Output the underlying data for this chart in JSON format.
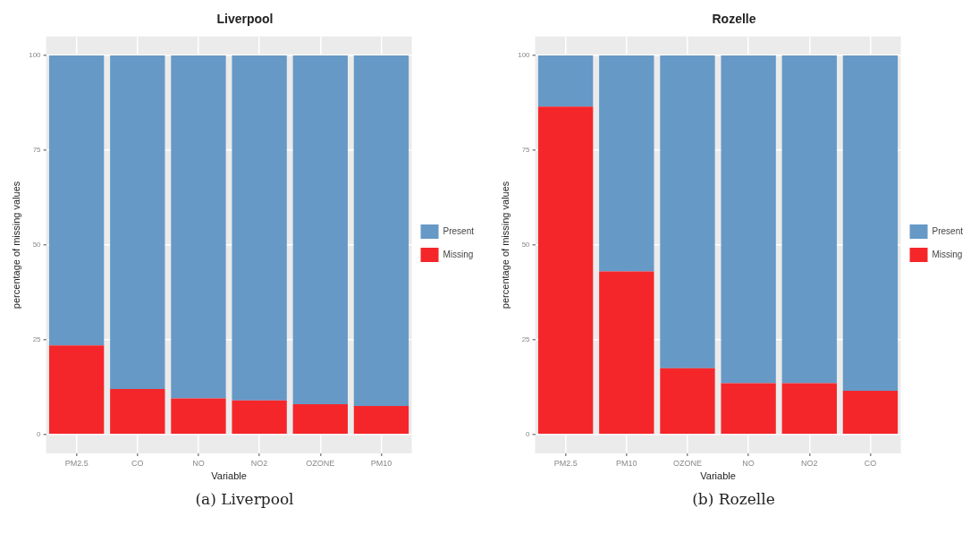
{
  "chart_data": [
    {
      "type": "bar",
      "title": "Liverpool",
      "xlabel": "Variable",
      "ylabel": "percentage of missing values",
      "stacked": true,
      "legend": "right",
      "grid": true,
      "categories": [
        "PM2.5",
        "CO",
        "NO",
        "NO2",
        "OZONE",
        "PM10"
      ],
      "series": [
        {
          "name": "Missing",
          "color": "#f5262a",
          "values": [
            23.5,
            12,
            9.5,
            9,
            8,
            7.5
          ]
        },
        {
          "name": "Present",
          "color": "#6699c6",
          "values": [
            76.5,
            88,
            90.5,
            91,
            92,
            92.5
          ]
        }
      ],
      "ylim": [
        -5,
        105
      ],
      "yticks": [
        0,
        25,
        50,
        75,
        100
      ],
      "annotations": [
        "(a) Liverpool"
      ]
    },
    {
      "type": "bar",
      "title": "Rozelle",
      "xlabel": "Variable",
      "ylabel": "percentage of missing values",
      "stacked": true,
      "legend": "right",
      "grid": true,
      "categories": [
        "PM2.5",
        "PM10",
        "OZONE",
        "NO",
        "NO2",
        "CO"
      ],
      "series": [
        {
          "name": "Missing",
          "color": "#f5262a",
          "values": [
            86.5,
            43,
            17.5,
            13.5,
            13.5,
            11.5
          ]
        },
        {
          "name": "Present",
          "color": "#6699c6",
          "values": [
            13.5,
            57,
            82.5,
            86.5,
            86.5,
            88.5
          ]
        }
      ],
      "ylim": [
        -5,
        105
      ],
      "yticks": [
        0,
        25,
        50,
        75,
        100
      ],
      "annotations": [
        "(b) Rozelle"
      ]
    }
  ]
}
